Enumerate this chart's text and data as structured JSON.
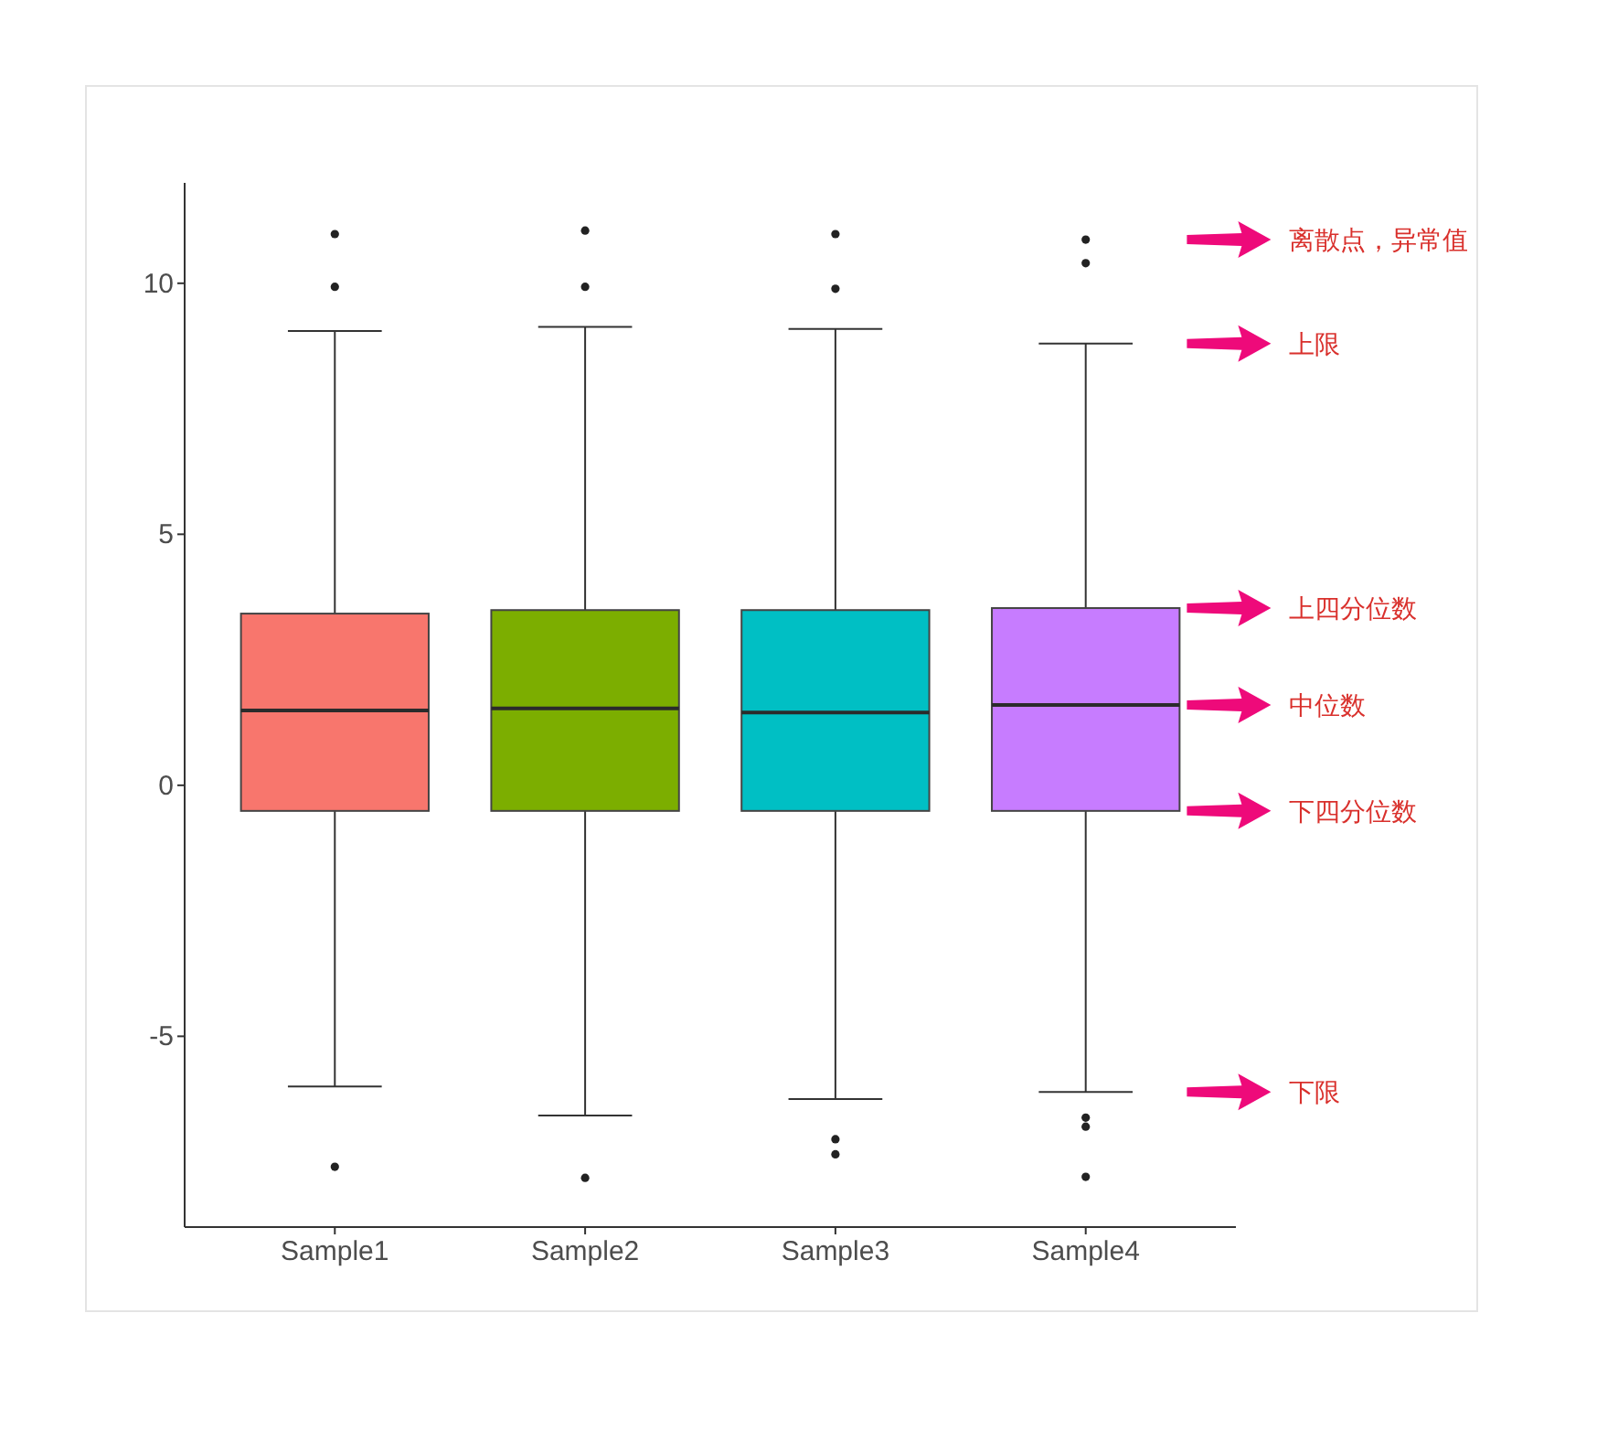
{
  "chart_data": {
    "type": "box",
    "categories": [
      "Sample1",
      "Sample2",
      "Sample3",
      "Sample4"
    ],
    "colors": [
      "#f8766d",
      "#7cae00",
      "#00bfc4",
      "#c77cff"
    ],
    "boxes": [
      {
        "low": -6.0,
        "q1": -0.51,
        "median": 1.49,
        "q3": 3.42,
        "high": 9.05,
        "outliers": [
          10.98,
          9.93,
          -7.6
        ]
      },
      {
        "low": -6.58,
        "q1": -0.51,
        "median": 1.53,
        "q3": 3.49,
        "high": 9.13,
        "outliers": [
          11.05,
          9.93,
          -7.82
        ]
      },
      {
        "low": -6.25,
        "q1": -0.51,
        "median": 1.45,
        "q3": 3.49,
        "high": 9.09,
        "outliers": [
          10.98,
          9.89,
          -7.05,
          -7.35
        ]
      },
      {
        "low": -6.11,
        "q1": -0.51,
        "median": 1.6,
        "q3": 3.53,
        "high": 8.8,
        "outliers": [
          10.87,
          10.4,
          -6.62,
          -6.8,
          -7.8
        ]
      }
    ],
    "ylim": [
      -8.8,
      12
    ],
    "yticks": [
      -5,
      0,
      5,
      10
    ],
    "grid": false,
    "annotations": [
      "离散点，异常值",
      "上限",
      "上四分位数",
      "中位数",
      "下四分位数",
      "下限"
    ]
  }
}
